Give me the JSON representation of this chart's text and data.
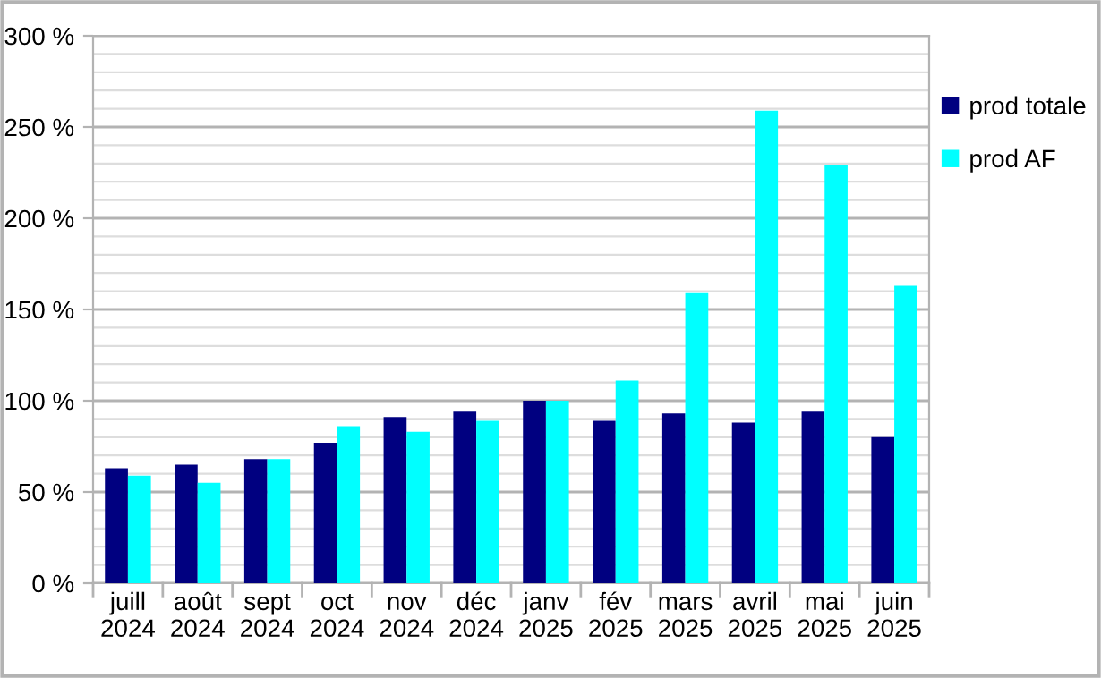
{
  "chart_data": {
    "type": "bar",
    "categories": [
      "juill\n2024",
      "août\n2024",
      "sept\n2024",
      "oct\n2024",
      "nov\n2024",
      "déc\n2024",
      "janv\n2025",
      "fév\n2025",
      "mars\n2025",
      "avril\n2025",
      "mai\n2025",
      "juin\n2025"
    ],
    "series": [
      {
        "name": "prod totale",
        "color": "#000080",
        "values": [
          63,
          65,
          68,
          77,
          91,
          94,
          100,
          89,
          93,
          88,
          94,
          80
        ]
      },
      {
        "name": "prod AF",
        "color": "#00ffff",
        "values": [
          59,
          55,
          68,
          86,
          83,
          89,
          100,
          111,
          159,
          259,
          229,
          163
        ]
      }
    ],
    "ylim": [
      0,
      300
    ],
    "yticks": [
      {
        "value": 0,
        "label": "0 %"
      },
      {
        "value": 50,
        "label": "50 %"
      },
      {
        "value": 100,
        "label": "100 %"
      },
      {
        "value": 150,
        "label": "150 %"
      },
      {
        "value": 200,
        "label": "200 %"
      },
      {
        "value": 250,
        "label": "250 %"
      },
      {
        "value": 300,
        "label": "300 %"
      }
    ],
    "grid": "y",
    "legend": "right"
  }
}
